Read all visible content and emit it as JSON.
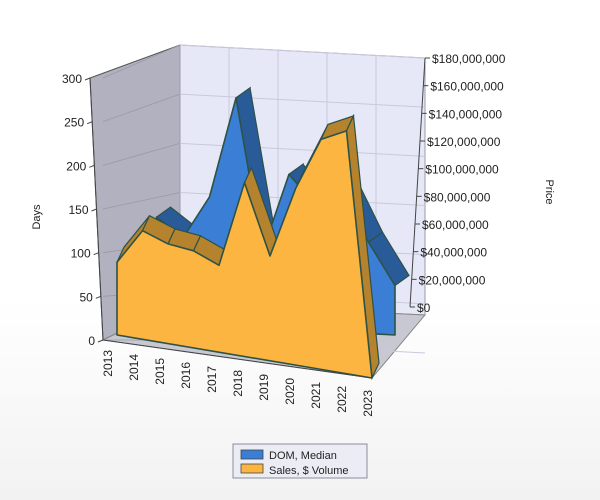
{
  "chart_data": {
    "type": "area",
    "title": "",
    "categories": [
      "2013",
      "2014",
      "2015",
      "2016",
      "2017",
      "2018",
      "2019",
      "2020",
      "2021",
      "2022",
      "2023"
    ],
    "series": [
      {
        "name": "DOM, Median",
        "axis": "left",
        "color": "#3a7fd5",
        "values": [
          null,
          135,
          110,
          165,
          295,
          98,
          200,
          162,
          186,
          118,
          64
        ]
      },
      {
        "name": "Sales, $ Volume",
        "axis": "right",
        "color": "#fbb540",
        "values": [
          57000000,
          85000000,
          78000000,
          76000000,
          68000000,
          136000000,
          82000000,
          138000000,
          180000000,
          190000000,
          0
        ]
      }
    ],
    "left_axis": {
      "title": "Days",
      "min": 0,
      "max": 300,
      "ticks": [
        0,
        50,
        100,
        150,
        200,
        250,
        300
      ]
    },
    "right_axis": {
      "title": "Price",
      "min": 0,
      "max": 180000000,
      "ticks": [
        0,
        20000000,
        40000000,
        60000000,
        80000000,
        100000000,
        120000000,
        140000000,
        160000000,
        180000000
      ]
    },
    "legend": {
      "position": "bottom",
      "items": [
        "DOM, Median",
        "Sales, $ Volume"
      ]
    },
    "grid": true
  }
}
